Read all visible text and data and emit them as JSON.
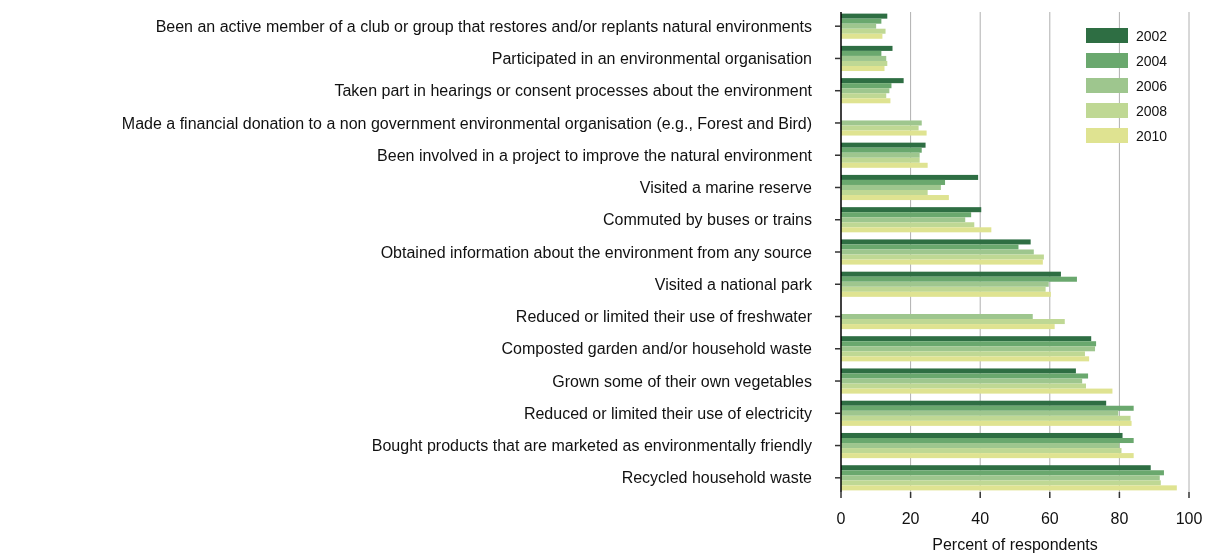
{
  "chart_data": {
    "type": "bar",
    "orientation": "horizontal",
    "xlabel": "Percent of respondents",
    "categories": [
      "Been an active member of a club or group that restores and/or replants natural environments",
      "Participated in an environmental organisation",
      "Taken part in hearings or consent processes about the environment",
      "Made a financial donation to a non government environmental organisation (e.g., Forest and Bird)",
      "Been involved in a project to improve the natural environment",
      "Visited a marine reserve",
      "Commuted by buses or trains",
      "Obtained information about the environment from any source",
      "Visited a national park",
      "Reduced or limited their use of freshwater",
      "Composted garden and/or household waste",
      "Grown some of their own vegetables",
      "Reduced or limited their use of electricity",
      "Bought products that are marketed as environmentally friendly",
      "Recycled household waste"
    ],
    "series": [
      {
        "name": "2002",
        "color": "#2e6e43",
        "values": [
          13.3,
          14.8,
          18.0,
          null,
          24.3,
          39.4,
          40.3,
          54.5,
          63.2,
          null,
          71.9,
          67.5,
          76.2,
          80.9,
          89.0
        ]
      },
      {
        "name": "2004",
        "color": "#6aa86e",
        "values": [
          11.6,
          11.6,
          14.5,
          null,
          23.2,
          29.9,
          37.4,
          51.0,
          67.8,
          null,
          73.3,
          71.0,
          84.1,
          84.1,
          92.8
        ]
      },
      {
        "name": "2006",
        "color": "#9ec68e",
        "values": [
          10.1,
          13.0,
          13.9,
          23.2,
          22.6,
          28.7,
          35.7,
          55.4,
          59.7,
          55.1,
          73.0,
          69.3,
          79.7,
          80.0,
          91.6
        ]
      },
      {
        "name": "2008",
        "color": "#bfd894",
        "values": [
          12.8,
          13.3,
          13.0,
          22.3,
          22.6,
          24.9,
          38.3,
          58.3,
          58.8,
          64.3,
          70.1,
          70.4,
          83.2,
          80.6,
          91.9
        ]
      },
      {
        "name": "2010",
        "color": "#dfe391",
        "values": [
          11.9,
          12.5,
          14.2,
          24.6,
          24.9,
          31.0,
          43.2,
          58.0,
          60.3,
          61.4,
          71.3,
          78.0,
          83.5,
          84.1,
          96.5
        ]
      }
    ],
    "xlim": [
      0,
      100
    ],
    "xticks": [
      0,
      20,
      40,
      60,
      80,
      100
    ],
    "grid": "x",
    "legend": "top right"
  }
}
